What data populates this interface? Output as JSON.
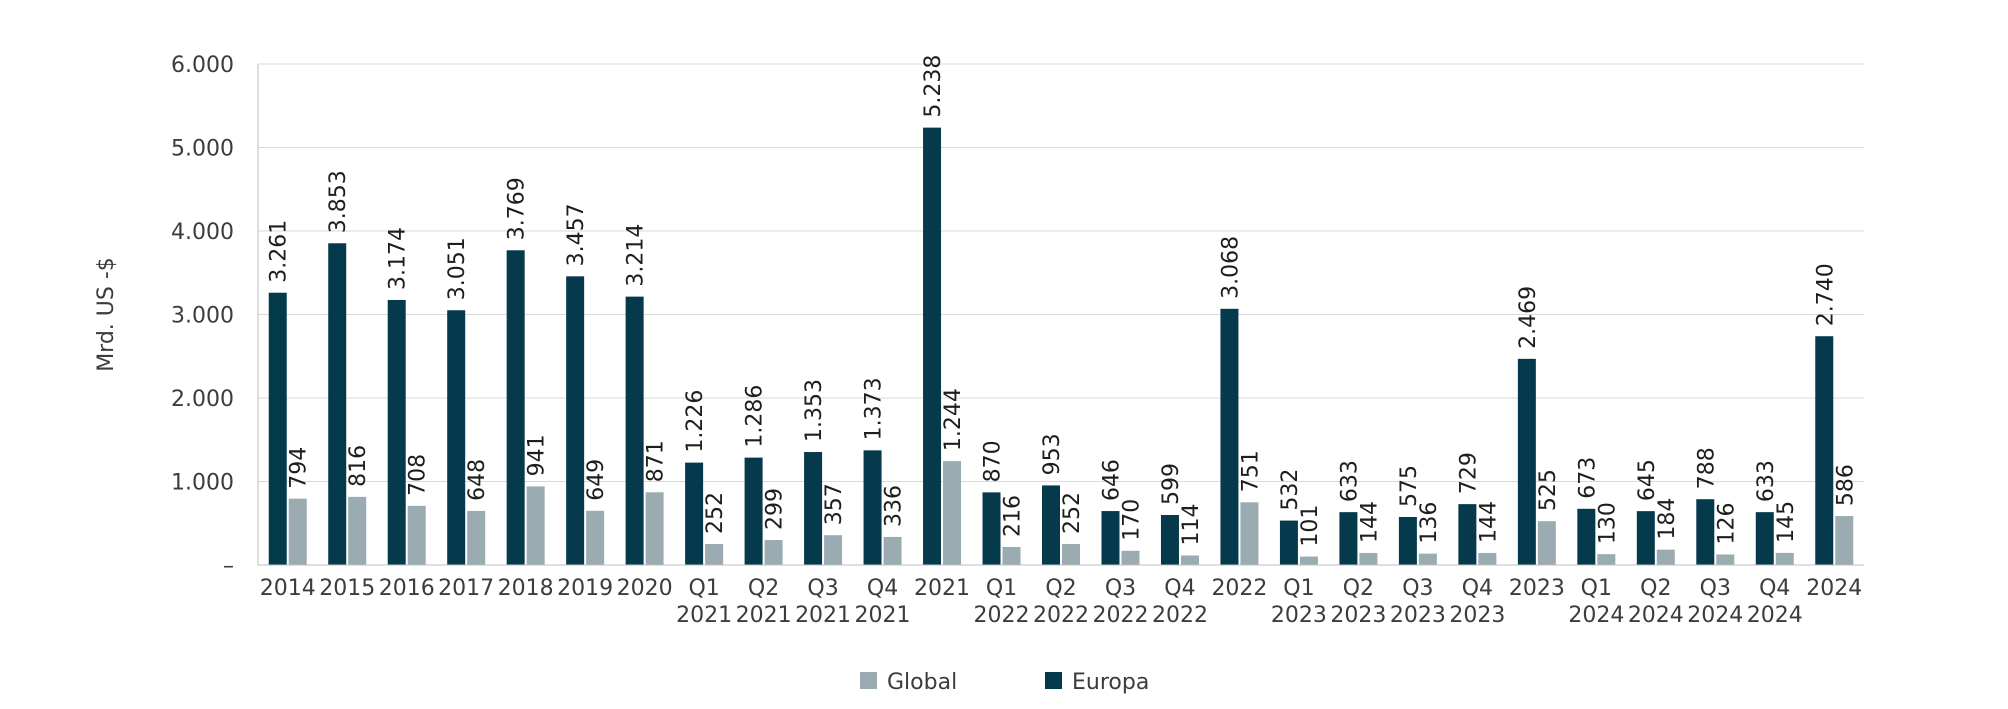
{
  "chart_data": {
    "type": "bar",
    "ylabel": "Mrd. US -$",
    "ylim": [
      0,
      6000
    ],
    "yticks": [
      {
        "value": 0,
        "label": "–"
      },
      {
        "value": 1000,
        "label": "1.000"
      },
      {
        "value": 2000,
        "label": "2.000"
      },
      {
        "value": 3000,
        "label": "3.000"
      },
      {
        "value": 4000,
        "label": "4.000"
      },
      {
        "value": 5000,
        "label": "5.000"
      },
      {
        "value": 6000,
        "label": "6.000"
      }
    ],
    "grid": true,
    "legend_position": "bottom",
    "categories": [
      [
        "2014"
      ],
      [
        "2015"
      ],
      [
        "2016"
      ],
      [
        "2017"
      ],
      [
        "2018"
      ],
      [
        "2019"
      ],
      [
        "2020"
      ],
      [
        "Q1",
        "2021"
      ],
      [
        "Q2",
        "2021"
      ],
      [
        "Q3",
        "2021"
      ],
      [
        "Q4",
        "2021"
      ],
      [
        "2021"
      ],
      [
        "Q1",
        "2022"
      ],
      [
        "Q2",
        "2022"
      ],
      [
        "Q3",
        "2022"
      ],
      [
        "Q4",
        "2022"
      ],
      [
        "2022"
      ],
      [
        "Q1",
        "2023"
      ],
      [
        "Q2",
        "2023"
      ],
      [
        "Q3",
        "2023"
      ],
      [
        "Q4",
        "2023"
      ],
      [
        "2023"
      ],
      [
        "Q1",
        "2024"
      ],
      [
        "Q2",
        "2024"
      ],
      [
        "Q3",
        "2024"
      ],
      [
        "Q4",
        "2024"
      ],
      [
        "2024"
      ]
    ],
    "series": [
      {
        "name": "Europa",
        "color": "#043a4c",
        "values": [
          3261,
          3853,
          3174,
          3051,
          3769,
          3457,
          3214,
          1226,
          1286,
          1353,
          1373,
          5238,
          870,
          953,
          646,
          599,
          3068,
          532,
          633,
          575,
          729,
          2469,
          673,
          645,
          788,
          633,
          2740
        ],
        "labels": [
          "3.261",
          "3.853",
          "3.174",
          "3.051",
          "3.769",
          "3.457",
          "3.214",
          "1.226",
          "1.286",
          "1.353",
          "1.373",
          "5.238",
          "870",
          "953",
          "646",
          "599",
          "3.068",
          "532",
          "633",
          "575",
          "729",
          "2.469",
          "673",
          "645",
          "788",
          "633",
          "2.740"
        ]
      },
      {
        "name": "Global",
        "color": "#9aacb1",
        "values": [
          794,
          816,
          708,
          648,
          941,
          649,
          871,
          252,
          299,
          357,
          336,
          1244,
          216,
          252,
          170,
          114,
          751,
          101,
          144,
          136,
          144,
          525,
          130,
          184,
          126,
          145,
          586
        ],
        "labels": [
          "794",
          "816",
          "708",
          "648",
          "941",
          "649",
          "871",
          "252",
          "299",
          "357",
          "336",
          "1.244",
          "216",
          "252",
          "170",
          "114",
          "751",
          "101",
          "144",
          "136",
          "144",
          "525",
          "130",
          "184",
          "126",
          "145",
          "586"
        ]
      }
    ],
    "legend": [
      {
        "name": "Global",
        "color": "#9aacb1"
      },
      {
        "name": "Europa",
        "color": "#043a4c"
      }
    ],
    "colors": {
      "grid": "#d9d9d9",
      "axis": "#bfbfbf"
    }
  }
}
